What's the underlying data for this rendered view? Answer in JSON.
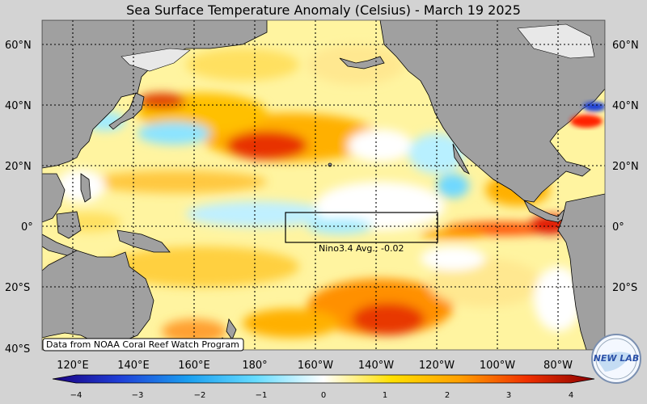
{
  "title": "Sea Surface Temperature Anomaly (Celsius) - March 19 2025",
  "lat_labels": [
    "60°N",
    "40°N",
    "20°N",
    "0°",
    "20°S",
    "40°S"
  ],
  "lon_labels": [
    "120°E",
    "140°E",
    "160°E",
    "180°",
    "160°W",
    "140°W",
    "120°W",
    "100°W",
    "80°W"
  ],
  "colorbar": {
    "ticks": [
      "−4",
      "−3",
      "−2",
      "−1",
      "0",
      "1",
      "2",
      "3",
      "4"
    ],
    "colors": [
      "#1a0080",
      "#1f3fd8",
      "#1a9ff0",
      "#66dcff",
      "#ffffff",
      "#ffe000",
      "#ffa000",
      "#f03000",
      "#8a0000"
    ]
  },
  "nino_label": "Nino3.4 Avg.: -0.02",
  "credit": "Data from NOAA Coral Reef Watch Program",
  "logo_text": "NEW LAB",
  "colors": {
    "ocean_base": "#fff4a0",
    "land": "#a0a0a0",
    "ice": "#e8e8e8",
    "background": "#d3d3d3"
  }
}
